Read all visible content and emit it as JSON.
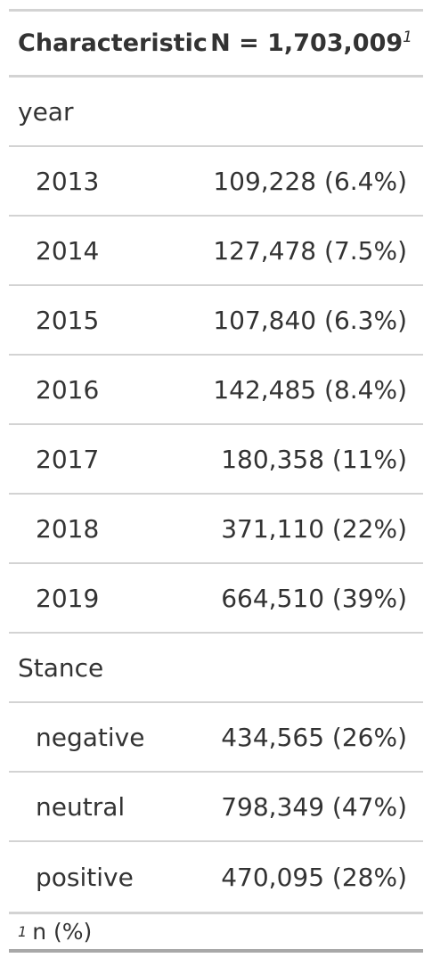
{
  "header": {
    "characteristic": "Characteristic",
    "n_label": "N = 1,703,009",
    "footnote_marker": "1"
  },
  "groups": [
    {
      "label": "year",
      "rows": [
        {
          "label": "2013",
          "value": "109,228 (6.4%)"
        },
        {
          "label": "2014",
          "value": "127,478 (7.5%)"
        },
        {
          "label": "2015",
          "value": "107,840 (6.3%)"
        },
        {
          "label": "2016",
          "value": "142,485 (8.4%)"
        },
        {
          "label": "2017",
          "value": "180,358 (11%)"
        },
        {
          "label": "2018",
          "value": "371,110 (22%)"
        },
        {
          "label": "2019",
          "value": "664,510 (39%)"
        }
      ]
    },
    {
      "label": "Stance",
      "rows": [
        {
          "label": "negative",
          "value": "434,565 (26%)"
        },
        {
          "label": "neutral",
          "value": "798,349 (47%)"
        },
        {
          "label": "positive",
          "value": "470,095 (28%)"
        }
      ]
    }
  ],
  "footnote": {
    "marker": "1",
    "text": "n (%)"
  }
}
